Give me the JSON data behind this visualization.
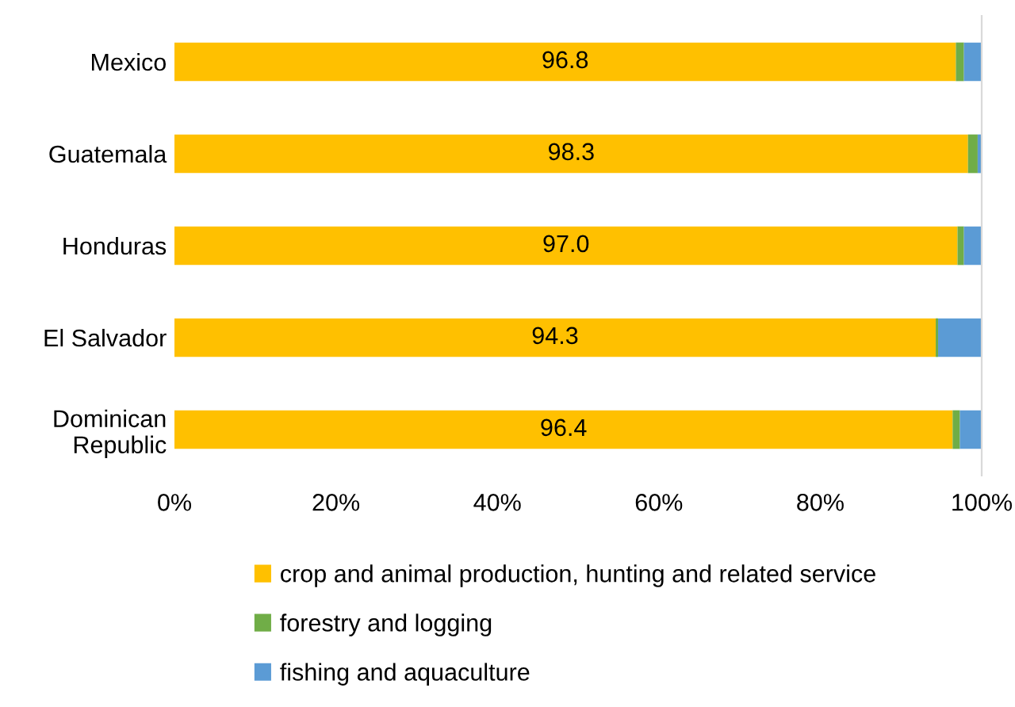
{
  "chart_data": {
    "type": "bar",
    "orientation": "horizontal",
    "stacked": true,
    "categories": [
      "Mexico",
      "Guatemala",
      "Honduras",
      "El Salvador",
      "Dominican\nRepublic"
    ],
    "series": [
      {
        "name": "crop and animal production, hunting and related service",
        "color": "#ffc000",
        "values": [
          96.8,
          98.3,
          97.0,
          94.3,
          96.4
        ],
        "value_labels": [
          "96.8",
          "98.3",
          "97.0",
          "94.3",
          "96.4"
        ]
      },
      {
        "name": "forestry and logging",
        "color": "#70ad47",
        "values": [
          1.0,
          1.2,
          0.8,
          0.3,
          0.9
        ]
      },
      {
        "name": "fishing and aquaculture",
        "color": "#5b9bd5",
        "values": [
          2.2,
          0.5,
          2.2,
          5.4,
          2.7
        ]
      }
    ],
    "xlim": [
      0,
      100
    ],
    "xticks": [
      {
        "value": 0,
        "label": "0%"
      },
      {
        "value": 20,
        "label": "20%"
      },
      {
        "value": 40,
        "label": "40%"
      },
      {
        "value": 60,
        "label": "60%"
      },
      {
        "value": 80,
        "label": "80%"
      },
      {
        "value": 100,
        "label": "100%"
      }
    ],
    "legend": "bottom",
    "grid": false
  }
}
